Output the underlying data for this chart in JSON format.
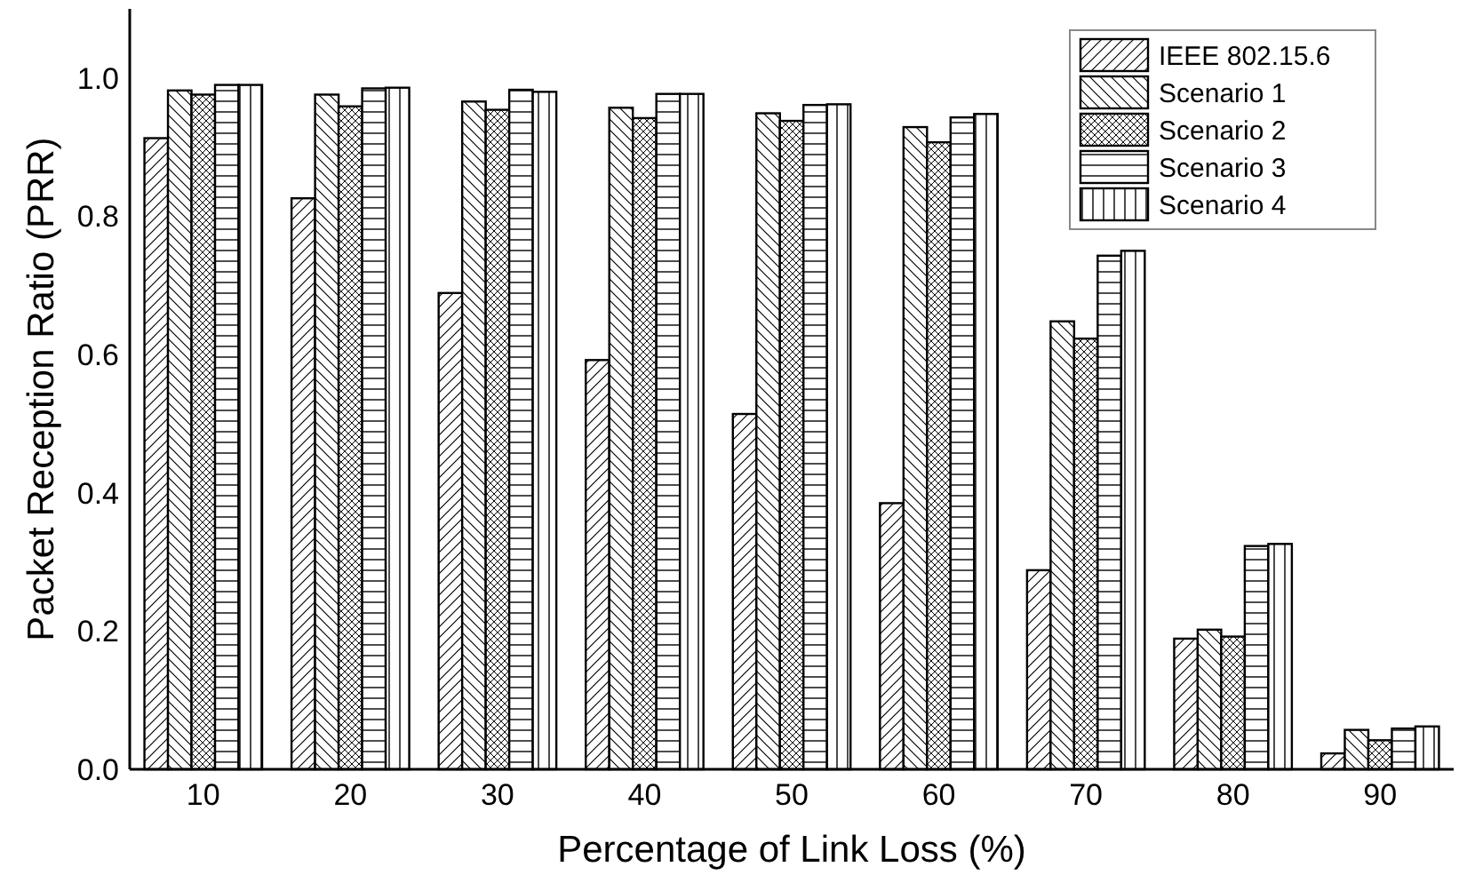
{
  "chart_data": {
    "type": "bar",
    "xlabel": "Percentage of Link Loss (%)",
    "ylabel": "Packet Reception Ratio (PRR)",
    "categories": [
      "10",
      "20",
      "30",
      "40",
      "50",
      "60",
      "70",
      "80",
      "90"
    ],
    "series": [
      {
        "name": "IEEE 802.15.6",
        "color": "#000000",
        "values": [
          0.913,
          0.826,
          0.689,
          0.592,
          0.514,
          0.385,
          0.288,
          0.189,
          0.023
        ]
      },
      {
        "name": "Scenario 1",
        "color": "#000000",
        "values": [
          0.982,
          0.976,
          0.966,
          0.957,
          0.949,
          0.929,
          0.648,
          0.202,
          0.057
        ]
      },
      {
        "name": "Scenario 2",
        "color": "#000000",
        "values": [
          0.976,
          0.959,
          0.954,
          0.942,
          0.938,
          0.907,
          0.623,
          0.192,
          0.042
        ]
      },
      {
        "name": "Scenario 3",
        "color": "#000000",
        "values": [
          0.99,
          0.985,
          0.983,
          0.977,
          0.961,
          0.943,
          0.743,
          0.323,
          0.059
        ]
      },
      {
        "name": "Scenario 4",
        "color": "#000000",
        "values": [
          0.99,
          0.986,
          0.98,
          0.977,
          0.962,
          0.948,
          0.75,
          0.326,
          0.062
        ]
      }
    ],
    "ylim": [
      0,
      1.1
    ],
    "yticks": [
      {
        "value": 0,
        "label": "0.0"
      },
      0.2,
      0.4,
      0.6,
      0.8,
      {
        "value": 1,
        "label": "1.0"
      }
    ],
    "grid": false,
    "legend": "top right"
  }
}
